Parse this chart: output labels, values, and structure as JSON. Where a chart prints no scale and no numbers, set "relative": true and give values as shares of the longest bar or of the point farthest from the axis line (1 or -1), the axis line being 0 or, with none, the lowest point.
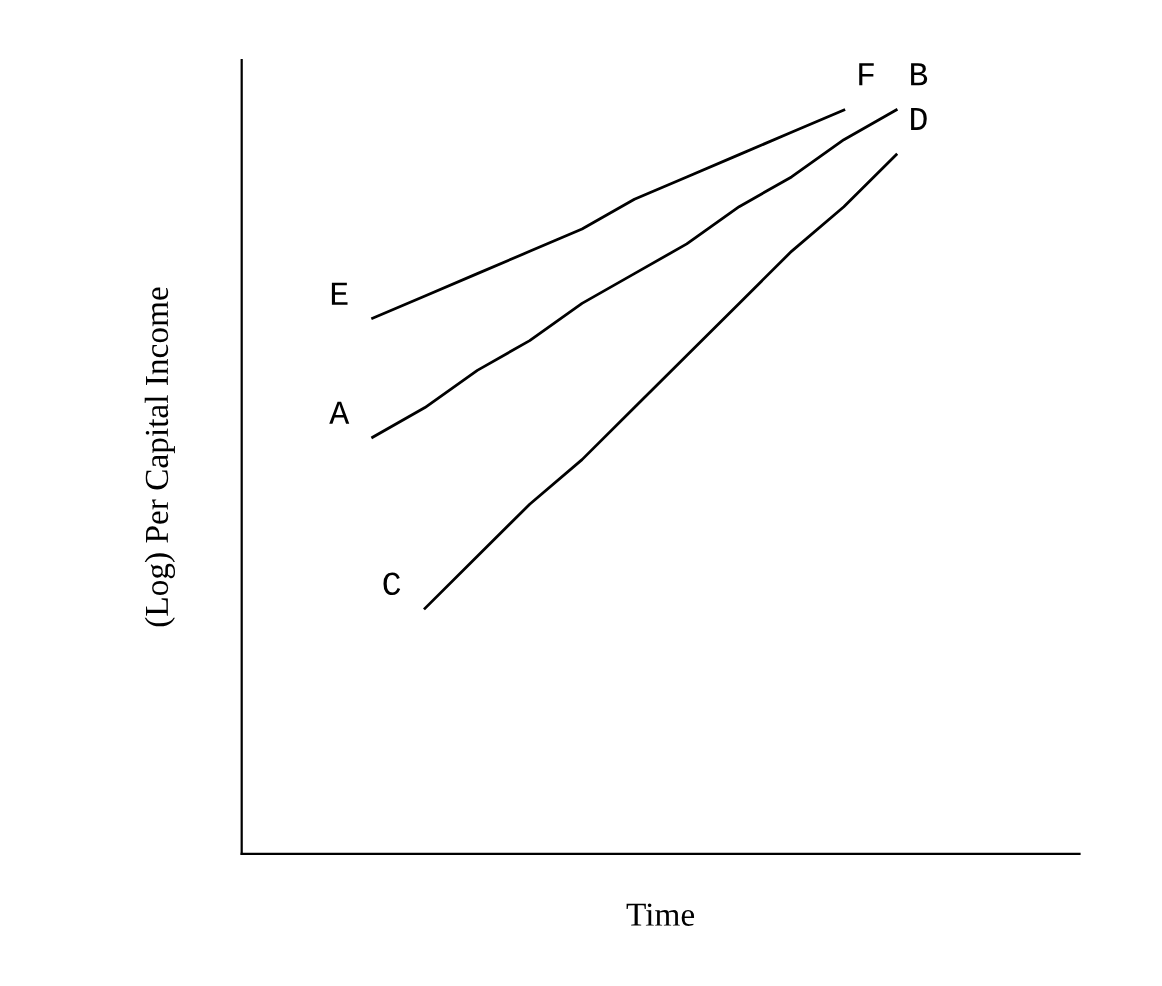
{
  "chart_data": {
    "type": "line",
    "relative": true,
    "xlabel": "Time",
    "ylabel": "(Log) Per Capital Income",
    "categories": [
      null,
      null,
      null,
      null,
      null,
      null,
      null,
      null,
      null,
      null,
      null,
      null,
      null,
      null,
      null,
      null
    ],
    "marker": "none",
    "line_style": "solid",
    "series": [
      {
        "color": "#000000",
        "values": [
          null,
          null,
          0.72,
          0.75,
          0.78,
          0.81,
          0.84,
          0.88,
          0.91,
          0.94,
          0.97,
          1.0,
          null,
          null,
          null,
          null
        ]
      },
      {
        "color": "#000000",
        "values": [
          null,
          null,
          0.56,
          0.6,
          0.65,
          0.69,
          0.74,
          0.78,
          0.82,
          0.87,
          0.91,
          0.96,
          1.0,
          null,
          null,
          null
        ]
      },
      {
        "color": "#000000",
        "values": [
          null,
          null,
          null,
          0.33,
          0.4,
          0.47,
          0.53,
          0.6,
          0.67,
          0.74,
          0.81,
          0.87,
          0.94,
          null,
          null,
          null
        ]
      }
    ],
    "annotations": [
      "E",
      "F",
      "A",
      "B",
      "C",
      "D"
    ]
  }
}
